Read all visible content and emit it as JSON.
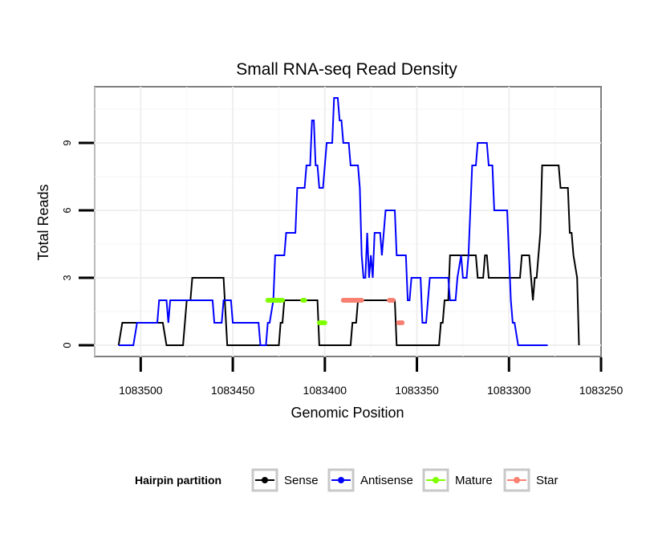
{
  "chart_data": {
    "type": "line",
    "title": "Small RNA-seq Read Density",
    "xlabel": "Genomic Position",
    "ylabel": "Total Reads",
    "xlim": [
      1083525,
      1083250
    ],
    "ylim": [
      -0.5,
      11.5
    ],
    "x_ticks": [
      1083500,
      1083450,
      1083400,
      1083350,
      1083300,
      1083250
    ],
    "x_tick_labels": [
      "1083500",
      "1083450",
      "1083400",
      "1083350",
      "1083300",
      "1083250"
    ],
    "y_ticks": [
      0,
      3,
      6,
      9
    ],
    "y_tick_labels": [
      "0",
      "3",
      "6",
      "9"
    ],
    "grid": true,
    "legend": {
      "title": "Hairpin partition",
      "position": "bottom",
      "entries": [
        {
          "name": "Sense",
          "color": "#000000"
        },
        {
          "name": "Antisense",
          "color": "#0000ff"
        },
        {
          "name": "Mature",
          "color": "#7fff00"
        },
        {
          "name": "Star",
          "color": "#fa8072"
        }
      ]
    },
    "series": [
      {
        "name": "Sense",
        "color": "#000000",
        "points": [
          [
            1083512,
            0
          ],
          [
            1083510,
            1
          ],
          [
            1083488,
            1
          ],
          [
            1083486,
            0
          ],
          [
            1083477,
            0
          ],
          [
            1083475,
            2
          ],
          [
            1083473,
            2
          ],
          [
            1083472,
            3
          ],
          [
            1083455,
            3
          ],
          [
            1083453,
            0
          ],
          [
            1083425,
            0
          ],
          [
            1083424,
            1
          ],
          [
            1083423,
            1
          ],
          [
            1083422,
            2
          ],
          [
            1083404,
            2
          ],
          [
            1083403,
            0
          ],
          [
            1083386,
            0
          ],
          [
            1083385,
            1
          ],
          [
            1083383,
            1
          ],
          [
            1083382,
            2
          ],
          [
            1083362,
            2
          ],
          [
            1083361,
            0
          ],
          [
            1083338,
            0
          ],
          [
            1083337,
            1
          ],
          [
            1083336,
            1
          ],
          [
            1083335,
            2
          ],
          [
            1083333,
            2
          ],
          [
            1083332,
            4
          ],
          [
            1083318,
            4
          ],
          [
            1083317,
            3
          ],
          [
            1083314,
            3
          ],
          [
            1083313,
            4
          ],
          [
            1083312,
            4
          ],
          [
            1083311,
            3
          ],
          [
            1083294,
            3
          ],
          [
            1083293,
            4
          ],
          [
            1083289,
            4
          ],
          [
            1083288,
            3
          ],
          [
            1083287,
            2
          ],
          [
            1083286,
            3
          ],
          [
            1083285,
            3
          ],
          [
            1083283,
            5
          ],
          [
            1083282,
            8
          ],
          [
            1083273,
            8
          ],
          [
            1083272,
            7
          ],
          [
            1083268,
            7
          ],
          [
            1083267,
            5
          ],
          [
            1083266,
            5
          ],
          [
            1083265,
            4
          ],
          [
            1083263,
            3
          ],
          [
            1083262,
            0
          ]
        ]
      },
      {
        "name": "Antisense",
        "color": "#0000ff",
        "points": [
          [
            1083512,
            0
          ],
          [
            1083504,
            0
          ],
          [
            1083502,
            1
          ],
          [
            1083491,
            1
          ],
          [
            1083490,
            2
          ],
          [
            1083486,
            2
          ],
          [
            1083485,
            1
          ],
          [
            1083484,
            2
          ],
          [
            1083482,
            2
          ],
          [
            1083481,
            2
          ],
          [
            1083461,
            2
          ],
          [
            1083460,
            1
          ],
          [
            1083456,
            1
          ],
          [
            1083455,
            2
          ],
          [
            1083451,
            2
          ],
          [
            1083450,
            1
          ],
          [
            1083436,
            1
          ],
          [
            1083435,
            0
          ],
          [
            1083432,
            0
          ],
          [
            1083431,
            1
          ],
          [
            1083430,
            1
          ],
          [
            1083428,
            2
          ],
          [
            1083427,
            4
          ],
          [
            1083422,
            4
          ],
          [
            1083421,
            5
          ],
          [
            1083416,
            5
          ],
          [
            1083415,
            7
          ],
          [
            1083411,
            7
          ],
          [
            1083410,
            8
          ],
          [
            1083408,
            8
          ],
          [
            1083407,
            10
          ],
          [
            1083406,
            10
          ],
          [
            1083405,
            8
          ],
          [
            1083404,
            8
          ],
          [
            1083403,
            7
          ],
          [
            1083401,
            7
          ],
          [
            1083400,
            8
          ],
          [
            1083399,
            9
          ],
          [
            1083396,
            9
          ],
          [
            1083395,
            11
          ],
          [
            1083393,
            11
          ],
          [
            1083392,
            10
          ],
          [
            1083391,
            10
          ],
          [
            1083390,
            9
          ],
          [
            1083387,
            9
          ],
          [
            1083386,
            8
          ],
          [
            1083382,
            8
          ],
          [
            1083381,
            7
          ],
          [
            1083380,
            4
          ],
          [
            1083379,
            3
          ],
          [
            1083378,
            3
          ],
          [
            1083377,
            5
          ],
          [
            1083376,
            3
          ],
          [
            1083375,
            4
          ],
          [
            1083374,
            3
          ],
          [
            1083373,
            5
          ],
          [
            1083370,
            5
          ],
          [
            1083369,
            4
          ],
          [
            1083368,
            5
          ],
          [
            1083367,
            6
          ],
          [
            1083362,
            6
          ],
          [
            1083361,
            4
          ],
          [
            1083356,
            4
          ],
          [
            1083355,
            2
          ],
          [
            1083354,
            2
          ],
          [
            1083353,
            3
          ],
          [
            1083348,
            3
          ],
          [
            1083347,
            1
          ],
          [
            1083345,
            1
          ],
          [
            1083344,
            2
          ],
          [
            1083343,
            3
          ],
          [
            1083333,
            3
          ],
          [
            1083332,
            2
          ],
          [
            1083329,
            2
          ],
          [
            1083328,
            3
          ],
          [
            1083326,
            4
          ],
          [
            1083325,
            3
          ],
          [
            1083323,
            3
          ],
          [
            1083322,
            4
          ],
          [
            1083321,
            6
          ],
          [
            1083320,
            8
          ],
          [
            1083318,
            8
          ],
          [
            1083317,
            9
          ],
          [
            1083312,
            9
          ],
          [
            1083311,
            8
          ],
          [
            1083309,
            8
          ],
          [
            1083308,
            6
          ],
          [
            1083301,
            6
          ],
          [
            1083300,
            4
          ],
          [
            1083299,
            2
          ],
          [
            1083298,
            1
          ],
          [
            1083297,
            1
          ],
          [
            1083295,
            0
          ],
          [
            1083279,
            0
          ]
        ]
      },
      {
        "name": "Mature",
        "color": "#7fff00",
        "points": [
          [
            1083431,
            2
          ],
          [
            1083423,
            2
          ],
          [
            1083412,
            2
          ],
          [
            1083411,
            2
          ],
          [
            1083403,
            1
          ],
          [
            1083400,
            1
          ]
        ]
      },
      {
        "name": "Star",
        "color": "#fa8072",
        "points": [
          [
            1083390,
            2
          ],
          [
            1083380,
            2
          ],
          [
            1083365,
            2
          ],
          [
            1083363,
            2
          ],
          [
            1083360,
            1
          ],
          [
            1083358,
            1
          ]
        ]
      }
    ]
  }
}
